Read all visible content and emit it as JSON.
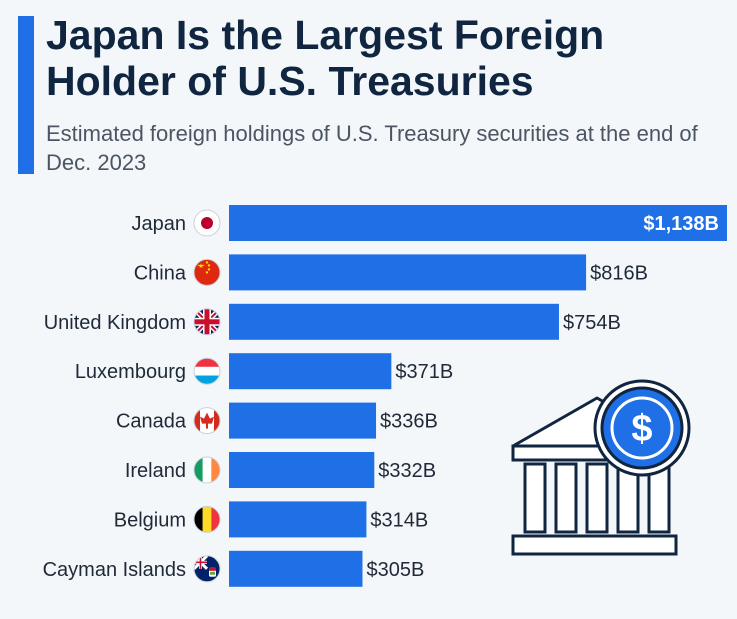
{
  "header": {
    "title": "Japan Is the Largest Foreign Holder of U.S. Treasuries",
    "subtitle": "Estimated foreign holdings of U.S. Treasury securities at the end of Dec. 2023"
  },
  "colors": {
    "accent": "#1f6fe6",
    "bar": "#1f6fe6",
    "title": "#0f2540",
    "text": "#1f2937",
    "icon_stroke": "#0f2540"
  },
  "icons": [
    "japan-flag-icon",
    "china-flag-icon",
    "uk-flag-icon",
    "luxembourg-flag-icon",
    "canada-flag-icon",
    "ireland-flag-icon",
    "belgium-flag-icon",
    "cayman-islands-flag-icon",
    "bank-dollar-icon"
  ],
  "chart_data": {
    "type": "bar",
    "orientation": "horizontal",
    "categories": [
      "Japan",
      "China",
      "United Kingdom",
      "Luxembourg",
      "Canada",
      "Ireland",
      "Belgium",
      "Cayman Islands"
    ],
    "values": [
      1138,
      816,
      754,
      371,
      336,
      332,
      314,
      305
    ],
    "value_labels": [
      "$1,138B",
      "$816B",
      "$754B",
      "$371B",
      "$336B",
      "$332B",
      "$314B",
      "$305B"
    ],
    "xlim": [
      0,
      1138
    ],
    "grid": false,
    "legend": "none"
  }
}
